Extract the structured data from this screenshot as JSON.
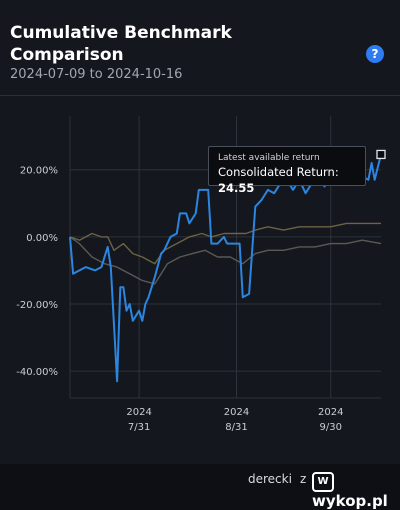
{
  "header": {
    "title": "Cumulative Benchmark Comparison",
    "date_range": "2024-07-09 to 2024-10-16",
    "help_icon": "?"
  },
  "tooltip": {
    "heading": "Latest available return",
    "label": "Consolidated Return:",
    "value": "24.55"
  },
  "footer": {
    "user": "derecki",
    "connector": "z",
    "site": "wykop.pl"
  },
  "colors": {
    "consolidated": "#2a86e0",
    "benchmark_a": "#6e6244",
    "benchmark_b": "#595a55",
    "grid": "#2e323a"
  },
  "chart_data": {
    "type": "line",
    "title": "Cumulative Benchmark Comparison",
    "x_range": [
      "2024-07-09",
      "2024-10-16"
    ],
    "ylim": [
      -48,
      36
    ],
    "y_ticks": [
      {
        "value": 20,
        "label": "20.00%"
      },
      {
        "value": 0,
        "label": "0.00%"
      },
      {
        "value": -20,
        "label": "-20.00%"
      },
      {
        "value": -40,
        "label": "-40.00%"
      }
    ],
    "x_ticks": [
      {
        "date": "2024-07-31",
        "year": "2024",
        "label": "7/31"
      },
      {
        "date": "2024-08-31",
        "year": "2024",
        "label": "8/31"
      },
      {
        "date": "2024-09-30",
        "year": "2024",
        "label": "9/30"
      }
    ],
    "grid": true,
    "series": [
      {
        "key": "consolidated",
        "points": [
          [
            "2024-07-09",
            0
          ],
          [
            "2024-07-10",
            -11
          ],
          [
            "2024-07-12",
            -10
          ],
          [
            "2024-07-14",
            -9
          ],
          [
            "2024-07-17",
            -10
          ],
          [
            "2024-07-19",
            -9
          ],
          [
            "2024-07-21",
            -3
          ],
          [
            "2024-07-22",
            -9
          ],
          [
            "2024-07-24",
            -43
          ],
          [
            "2024-07-25",
            -15
          ],
          [
            "2024-07-26",
            -15
          ],
          [
            "2024-07-27",
            -22
          ],
          [
            "2024-07-28",
            -20
          ],
          [
            "2024-07-29",
            -25
          ],
          [
            "2024-07-31",
            -22
          ],
          [
            "2024-08-01",
            -25
          ],
          [
            "2024-08-02",
            -20
          ],
          [
            "2024-08-03",
            -18
          ],
          [
            "2024-08-05",
            -12
          ],
          [
            "2024-08-07",
            -5
          ],
          [
            "2024-08-08",
            -4
          ],
          [
            "2024-08-10",
            0
          ],
          [
            "2024-08-12",
            1
          ],
          [
            "2024-08-13",
            7
          ],
          [
            "2024-08-15",
            7
          ],
          [
            "2024-08-16",
            4
          ],
          [
            "2024-08-18",
            7
          ],
          [
            "2024-08-19",
            14
          ],
          [
            "2024-08-22",
            14
          ],
          [
            "2024-08-23",
            -2
          ],
          [
            "2024-08-25",
            -2
          ],
          [
            "2024-08-27",
            0
          ],
          [
            "2024-08-28",
            -2
          ],
          [
            "2024-08-29",
            -2
          ],
          [
            "2024-09-01",
            -2
          ],
          [
            "2024-09-02",
            -18
          ],
          [
            "2024-09-04",
            -17
          ],
          [
            "2024-09-06",
            9
          ],
          [
            "2024-09-08",
            11
          ],
          [
            "2024-09-10",
            14
          ],
          [
            "2024-09-12",
            13
          ],
          [
            "2024-09-14",
            16
          ],
          [
            "2024-09-16",
            17
          ],
          [
            "2024-09-18",
            14
          ],
          [
            "2024-09-20",
            17
          ],
          [
            "2024-09-22",
            13
          ],
          [
            "2024-09-24",
            16
          ],
          [
            "2024-09-26",
            20
          ],
          [
            "2024-09-28",
            15
          ],
          [
            "2024-09-30",
            18
          ],
          [
            "2024-10-02",
            21
          ],
          [
            "2024-10-04",
            16
          ],
          [
            "2024-10-06",
            19
          ],
          [
            "2024-10-08",
            22
          ],
          [
            "2024-10-10",
            18
          ],
          [
            "2024-10-12",
            17
          ],
          [
            "2024-10-13",
            22
          ],
          [
            "2024-10-14",
            17
          ],
          [
            "2024-10-16",
            24.55
          ]
        ]
      },
      {
        "key": "benchmark_a",
        "points": [
          [
            "2024-07-09",
            0
          ],
          [
            "2024-07-12",
            -1
          ],
          [
            "2024-07-16",
            1
          ],
          [
            "2024-07-19",
            0
          ],
          [
            "2024-07-21",
            0
          ],
          [
            "2024-07-23",
            -4
          ],
          [
            "2024-07-26",
            -2
          ],
          [
            "2024-07-29",
            -5
          ],
          [
            "2024-08-01",
            -6
          ],
          [
            "2024-08-05",
            -8
          ],
          [
            "2024-08-08",
            -4
          ],
          [
            "2024-08-12",
            -2
          ],
          [
            "2024-08-16",
            0
          ],
          [
            "2024-08-20",
            1
          ],
          [
            "2024-08-23",
            0
          ],
          [
            "2024-08-27",
            1
          ],
          [
            "2024-08-31",
            1
          ],
          [
            "2024-09-03",
            1
          ],
          [
            "2024-09-06",
            2
          ],
          [
            "2024-09-10",
            3
          ],
          [
            "2024-09-15",
            2
          ],
          [
            "2024-09-20",
            3
          ],
          [
            "2024-09-25",
            3
          ],
          [
            "2024-09-30",
            3
          ],
          [
            "2024-10-05",
            4
          ],
          [
            "2024-10-10",
            4
          ],
          [
            "2024-10-16",
            4
          ]
        ]
      },
      {
        "key": "benchmark_b",
        "points": [
          [
            "2024-07-09",
            0
          ],
          [
            "2024-07-12",
            -2
          ],
          [
            "2024-07-16",
            -6
          ],
          [
            "2024-07-20",
            -8
          ],
          [
            "2024-07-24",
            -9
          ],
          [
            "2024-07-28",
            -11
          ],
          [
            "2024-08-01",
            -13
          ],
          [
            "2024-08-05",
            -14
          ],
          [
            "2024-08-09",
            -8
          ],
          [
            "2024-08-13",
            -6
          ],
          [
            "2024-08-17",
            -5
          ],
          [
            "2024-08-21",
            -4
          ],
          [
            "2024-08-25",
            -6
          ],
          [
            "2024-08-29",
            -6
          ],
          [
            "2024-09-02",
            -8
          ],
          [
            "2024-09-06",
            -5
          ],
          [
            "2024-09-10",
            -4
          ],
          [
            "2024-09-15",
            -4
          ],
          [
            "2024-09-20",
            -3
          ],
          [
            "2024-09-25",
            -3
          ],
          [
            "2024-09-30",
            -2
          ],
          [
            "2024-10-05",
            -2
          ],
          [
            "2024-10-10",
            -1
          ],
          [
            "2024-10-16",
            -2
          ]
        ]
      }
    ]
  }
}
